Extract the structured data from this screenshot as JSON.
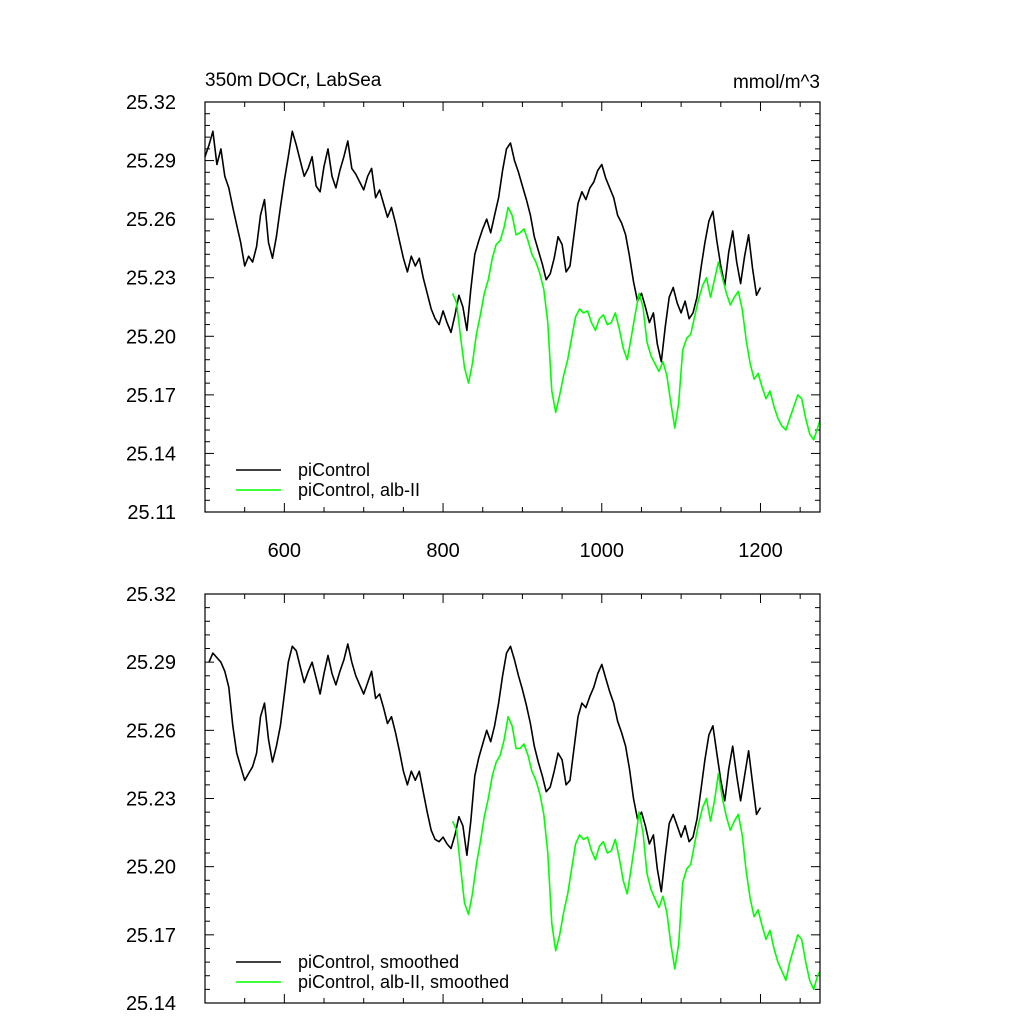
{
  "figure": {
    "colors": {
      "piControl": "#000000",
      "alb": "#00ff00"
    }
  },
  "chart_data": [
    {
      "type": "line",
      "title": "350m DOCr, LabSea",
      "units": "mmol/m^3",
      "xlim": [
        500,
        1275
      ],
      "ylim": [
        25.11,
        25.32
      ],
      "xticks": [
        600,
        800,
        1000,
        1200
      ],
      "xtick_labels": [
        "600",
        "800",
        "1000",
        "1200"
      ],
      "yticks": [
        25.11,
        25.14,
        25.17,
        25.2,
        25.23,
        25.26,
        25.29,
        25.32
      ],
      "ytick_labels": [
        "25.11",
        "25.14",
        "25.17",
        "25.20",
        "25.23",
        "25.26",
        "25.29",
        "25.32"
      ],
      "legend": {
        "placement": "bottom-left"
      },
      "series": [
        {
          "name": "piControl",
          "color": "#000000",
          "x": [
            500,
            505,
            510,
            515,
            520,
            525,
            530,
            535,
            540,
            545,
            550,
            555,
            560,
            565,
            570,
            575,
            580,
            585,
            590,
            595,
            600,
            605,
            610,
            615,
            620,
            625,
            630,
            635,
            640,
            645,
            650,
            655,
            660,
            665,
            670,
            675,
            680,
            685,
            690,
            695,
            700,
            705,
            710,
            715,
            720,
            725,
            730,
            735,
            740,
            745,
            750,
            755,
            760,
            765,
            770,
            775,
            780,
            785,
            790,
            795,
            800,
            805,
            810,
            815,
            820,
            825,
            830,
            835,
            840,
            845,
            850,
            855,
            860,
            865,
            870,
            875,
            880,
            885,
            890,
            895,
            900,
            905,
            910,
            915,
            920,
            925,
            930,
            935,
            940,
            945,
            950,
            955,
            960,
            965,
            970,
            975,
            980,
            985,
            990,
            995,
            1000,
            1005,
            1010,
            1015,
            1020,
            1025,
            1030,
            1035,
            1040,
            1045,
            1050,
            1055,
            1060,
            1065,
            1070,
            1075,
            1080,
            1085,
            1090,
            1095,
            1100,
            1105,
            1110,
            1115,
            1120,
            1125,
            1130,
            1135,
            1140,
            1145,
            1150,
            1155,
            1160,
            1165,
            1170,
            1175,
            1180,
            1185,
            1190,
            1195,
            1200
          ],
          "y": [
            25.292,
            25.298,
            25.305,
            25.288,
            25.296,
            25.282,
            25.276,
            25.266,
            25.257,
            25.248,
            25.236,
            25.241,
            25.238,
            25.246,
            25.262,
            25.27,
            25.248,
            25.24,
            25.251,
            25.266,
            25.28,
            25.292,
            25.305,
            25.298,
            25.29,
            25.282,
            25.286,
            25.292,
            25.277,
            25.274,
            25.287,
            25.296,
            25.282,
            25.276,
            25.285,
            25.292,
            25.3,
            25.286,
            25.283,
            25.279,
            25.275,
            25.282,
            25.286,
            25.271,
            25.275,
            25.268,
            25.261,
            25.266,
            25.258,
            25.249,
            25.24,
            25.233,
            25.241,
            25.236,
            25.24,
            25.23,
            25.222,
            25.214,
            25.209,
            25.206,
            25.213,
            25.207,
            25.202,
            25.211,
            25.221,
            25.215,
            25.203,
            25.224,
            25.242,
            25.249,
            25.255,
            25.26,
            25.253,
            25.262,
            25.271,
            25.285,
            25.296,
            25.299,
            25.29,
            25.284,
            25.277,
            25.27,
            25.262,
            25.251,
            25.244,
            25.237,
            25.229,
            25.232,
            25.24,
            25.251,
            25.247,
            25.233,
            25.236,
            25.252,
            25.268,
            25.274,
            25.27,
            25.276,
            25.279,
            25.285,
            25.288,
            25.281,
            25.276,
            25.271,
            25.262,
            25.258,
            25.252,
            25.241,
            25.228,
            25.218,
            25.222,
            25.215,
            25.207,
            25.212,
            25.196,
            25.187,
            25.205,
            25.22,
            25.225,
            25.217,
            25.212,
            25.218,
            25.209,
            25.212,
            25.22,
            25.235,
            25.248,
            25.259,
            25.264,
            25.249,
            25.236,
            25.226,
            25.243,
            25.254,
            25.238,
            25.227,
            25.241,
            25.252,
            25.235,
            25.221,
            25.225
          ]
        },
        {
          "name": "piControl, alb-II",
          "color": "#00ff00",
          "x": [
            812,
            817,
            822,
            827,
            832,
            837,
            842,
            847,
            852,
            857,
            862,
            867,
            872,
            877,
            882,
            887,
            892,
            897,
            902,
            907,
            912,
            917,
            922,
            927,
            932,
            937,
            942,
            947,
            952,
            957,
            962,
            967,
            972,
            977,
            982,
            987,
            992,
            997,
            1002,
            1007,
            1012,
            1017,
            1022,
            1027,
            1032,
            1037,
            1042,
            1047,
            1052,
            1057,
            1062,
            1067,
            1072,
            1077,
            1082,
            1087,
            1092,
            1097,
            1102,
            1107,
            1112,
            1117,
            1122,
            1127,
            1132,
            1137,
            1142,
            1147,
            1152,
            1157,
            1162,
            1167,
            1172,
            1177,
            1182,
            1187,
            1192,
            1197,
            1202,
            1207,
            1212,
            1217,
            1222,
            1227,
            1232,
            1237,
            1242,
            1247,
            1252,
            1257,
            1262,
            1267,
            1272,
            1275
          ],
          "y": [
            25.222,
            25.217,
            25.2,
            25.184,
            25.176,
            25.186,
            25.201,
            25.211,
            25.222,
            25.229,
            25.24,
            25.247,
            25.249,
            25.256,
            25.266,
            25.262,
            25.252,
            25.253,
            25.255,
            25.249,
            25.242,
            25.238,
            25.232,
            25.224,
            25.207,
            25.172,
            25.161,
            25.17,
            25.18,
            25.188,
            25.199,
            25.21,
            25.214,
            25.212,
            25.213,
            25.207,
            25.203,
            25.209,
            25.211,
            25.206,
            25.207,
            25.212,
            25.204,
            25.194,
            25.188,
            25.199,
            25.211,
            25.222,
            25.215,
            25.197,
            25.19,
            25.186,
            25.182,
            25.187,
            25.18,
            25.166,
            25.153,
            25.166,
            25.193,
            25.199,
            25.201,
            25.21,
            25.219,
            25.226,
            25.23,
            25.22,
            25.229,
            25.238,
            25.23,
            25.222,
            25.216,
            25.22,
            25.223,
            25.214,
            25.198,
            25.186,
            25.178,
            25.181,
            25.174,
            25.168,
            25.172,
            25.164,
            25.158,
            25.154,
            25.152,
            25.158,
            25.164,
            25.17,
            25.168,
            25.158,
            25.15,
            25.147,
            25.153,
            25.157
          ]
        }
      ]
    },
    {
      "type": "line",
      "xlim": [
        500,
        1275
      ],
      "ylim": [
        25.14,
        25.32
      ],
      "xticks": [
        600,
        800,
        1000,
        1200
      ],
      "yticks": [
        25.14,
        25.17,
        25.2,
        25.23,
        25.26,
        25.29,
        25.32
      ],
      "ytick_labels": [
        "25.14",
        "25.17",
        "25.20",
        "25.23",
        "25.26",
        "25.29",
        "25.32"
      ],
      "legend": {
        "placement": "bottom-left"
      },
      "series": [
        {
          "name": "piControl, smoothed",
          "color": "#000000",
          "x": [
            505,
            510,
            515,
            520,
            525,
            530,
            535,
            540,
            545,
            550,
            555,
            560,
            565,
            570,
            575,
            580,
            585,
            590,
            595,
            600,
            605,
            610,
            615,
            620,
            625,
            630,
            635,
            640,
            645,
            650,
            655,
            660,
            665,
            670,
            675,
            680,
            685,
            690,
            695,
            700,
            705,
            710,
            715,
            720,
            725,
            730,
            735,
            740,
            745,
            750,
            755,
            760,
            765,
            770,
            775,
            780,
            785,
            790,
            795,
            800,
            805,
            810,
            815,
            820,
            825,
            830,
            835,
            840,
            845,
            850,
            855,
            860,
            865,
            870,
            875,
            880,
            885,
            890,
            895,
            900,
            905,
            910,
            915,
            920,
            925,
            930,
            935,
            940,
            945,
            950,
            955,
            960,
            965,
            970,
            975,
            980,
            985,
            990,
            995,
            1000,
            1005,
            1010,
            1015,
            1020,
            1025,
            1030,
            1035,
            1040,
            1045,
            1050,
            1055,
            1060,
            1065,
            1070,
            1075,
            1080,
            1085,
            1090,
            1095,
            1100,
            1105,
            1110,
            1115,
            1120,
            1125,
            1130,
            1135,
            1140,
            1145,
            1150,
            1155,
            1160,
            1165,
            1170,
            1175,
            1180,
            1185,
            1190,
            1195,
            1200
          ],
          "y": [
            25.29,
            25.294,
            25.292,
            25.29,
            25.286,
            25.279,
            25.262,
            25.25,
            25.244,
            25.238,
            25.241,
            25.244,
            25.25,
            25.266,
            25.272,
            25.256,
            25.246,
            25.253,
            25.262,
            25.276,
            25.29,
            25.297,
            25.295,
            25.288,
            25.281,
            25.286,
            25.29,
            25.283,
            25.276,
            25.285,
            25.293,
            25.285,
            25.28,
            25.286,
            25.291,
            25.298,
            25.29,
            25.284,
            25.28,
            25.276,
            25.281,
            25.286,
            25.274,
            25.276,
            25.27,
            25.263,
            25.266,
            25.259,
            25.251,
            25.242,
            25.236,
            25.242,
            25.238,
            25.242,
            25.233,
            25.224,
            25.216,
            25.212,
            25.211,
            25.213,
            25.21,
            25.208,
            25.214,
            25.222,
            25.218,
            25.205,
            25.22,
            25.24,
            25.248,
            25.254,
            25.26,
            25.255,
            25.262,
            25.272,
            25.284,
            25.294,
            25.297,
            25.291,
            25.284,
            25.278,
            25.271,
            25.263,
            25.253,
            25.246,
            25.24,
            25.233,
            25.235,
            25.242,
            25.25,
            25.247,
            25.236,
            25.238,
            25.252,
            25.266,
            25.272,
            25.27,
            25.275,
            25.279,
            25.285,
            25.289,
            25.283,
            25.277,
            25.272,
            25.264,
            25.259,
            25.253,
            25.243,
            25.23,
            25.221,
            25.224,
            25.218,
            25.21,
            25.214,
            25.199,
            25.189,
            25.205,
            25.219,
            25.223,
            25.218,
            25.213,
            25.218,
            25.211,
            25.213,
            25.221,
            25.234,
            25.247,
            25.258,
            25.262,
            25.25,
            25.238,
            25.229,
            25.243,
            25.253,
            25.24,
            25.229,
            25.24,
            25.251,
            25.237,
            25.223,
            25.226
          ]
        },
        {
          "name": "piControl, alb-II, smoothed",
          "color": "#00ff00",
          "x": [
            812,
            817,
            822,
            827,
            832,
            837,
            842,
            847,
            852,
            857,
            862,
            867,
            872,
            877,
            882,
            887,
            892,
            897,
            902,
            907,
            912,
            917,
            922,
            927,
            932,
            937,
            942,
            947,
            952,
            957,
            962,
            967,
            972,
            977,
            982,
            987,
            992,
            997,
            1002,
            1007,
            1012,
            1017,
            1022,
            1027,
            1032,
            1037,
            1042,
            1047,
            1052,
            1057,
            1062,
            1067,
            1072,
            1077,
            1082,
            1087,
            1092,
            1097,
            1102,
            1107,
            1112,
            1117,
            1122,
            1127,
            1132,
            1137,
            1142,
            1147,
            1152,
            1157,
            1162,
            1167,
            1172,
            1177,
            1182,
            1187,
            1192,
            1197,
            1202,
            1207,
            1212,
            1217,
            1222,
            1227,
            1232,
            1237,
            1242,
            1247,
            1252,
            1257,
            1262,
            1267,
            1272,
            1275
          ],
          "y": [
            25.22,
            25.216,
            25.2,
            25.184,
            25.179,
            25.188,
            25.201,
            25.211,
            25.222,
            25.23,
            25.24,
            25.246,
            25.249,
            25.256,
            25.266,
            25.262,
            25.252,
            25.252,
            25.254,
            25.249,
            25.242,
            25.238,
            25.232,
            25.223,
            25.206,
            25.175,
            25.163,
            25.17,
            25.18,
            25.188,
            25.199,
            25.21,
            25.214,
            25.212,
            25.213,
            25.207,
            25.203,
            25.209,
            25.211,
            25.206,
            25.207,
            25.212,
            25.204,
            25.194,
            25.188,
            25.199,
            25.211,
            25.224,
            25.215,
            25.197,
            25.19,
            25.186,
            25.182,
            25.187,
            25.18,
            25.166,
            25.155,
            25.166,
            25.193,
            25.199,
            25.201,
            25.21,
            25.219,
            25.226,
            25.23,
            25.22,
            25.229,
            25.241,
            25.23,
            25.222,
            25.216,
            25.22,
            25.223,
            25.214,
            25.198,
            25.186,
            25.178,
            25.181,
            25.174,
            25.168,
            25.172,
            25.164,
            25.158,
            25.154,
            25.15,
            25.158,
            25.164,
            25.17,
            25.168,
            25.158,
            25.15,
            25.146,
            25.152,
            25.154
          ]
        }
      ]
    }
  ]
}
